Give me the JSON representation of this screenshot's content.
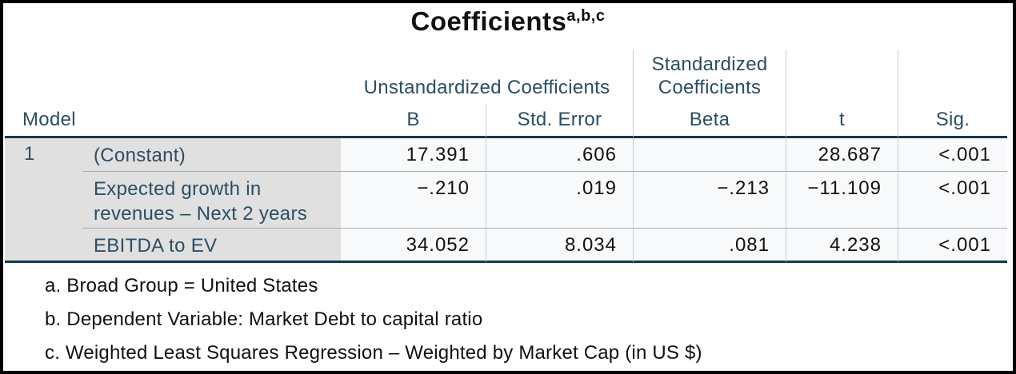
{
  "title": {
    "text": "Coefficients",
    "superscript": "a,b,c"
  },
  "colors": {
    "teal": "#2b4e63",
    "dark-rule": "#17384d",
    "label-bg": "#e0e0e0",
    "data-bg": "#f8f9fa",
    "row-sep": "#a8acae",
    "col-div": "#c9cdd0",
    "text-black": "#111111",
    "frame": "#000000"
  },
  "table": {
    "model_header": "Model",
    "group_headers": {
      "unstandardized": "Unstandardized Coefficients",
      "standardized": "Standardized Coefficients"
    },
    "column_headers": {
      "b": "B",
      "std_error": "Std. Error",
      "beta": "Beta",
      "t": "t",
      "sig": "Sig."
    },
    "model_number": "1",
    "rows": [
      {
        "label": "(Constant)",
        "b": "17.391",
        "std_error": ".606",
        "beta": "",
        "t": "28.687",
        "sig": "<.001"
      },
      {
        "label": "Expected growth in revenues – Next 2 years",
        "b": "−.210",
        "std_error": ".019",
        "beta": "−.213",
        "t": "−11.109",
        "sig": "<.001"
      },
      {
        "label": "EBITDA to EV",
        "b": "34.052",
        "std_error": "8.034",
        "beta": ".081",
        "t": "4.238",
        "sig": "<.001"
      }
    ]
  },
  "footnotes": [
    "a. Broad Group = United States",
    "b. Dependent Variable: Market Debt to capital ratio",
    "c. Weighted Least Squares Regression – Weighted by Market Cap (in US $)"
  ]
}
